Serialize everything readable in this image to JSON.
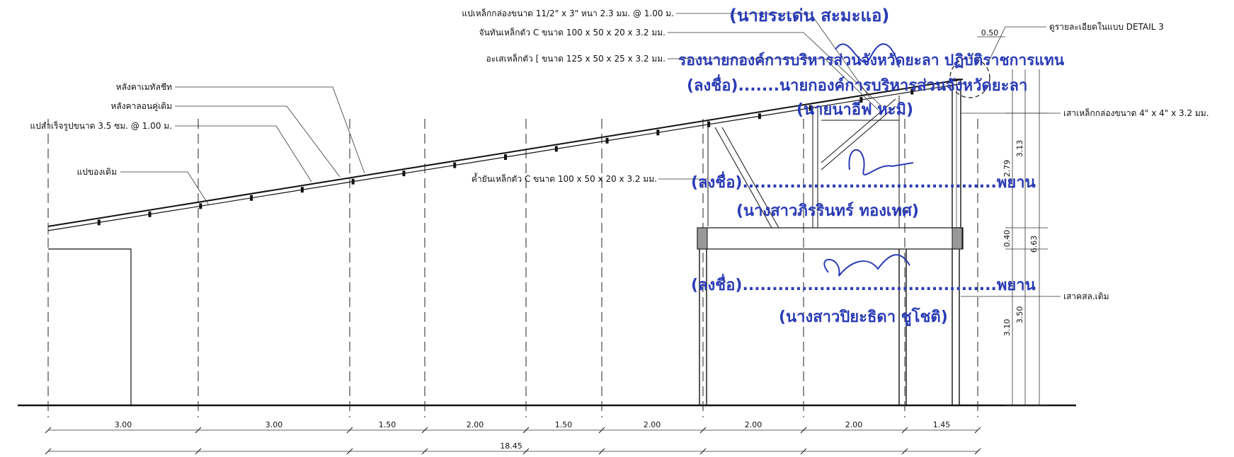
{
  "annotations": {
    "metal_sheet_roof": "หลังคาเมทัลชีท",
    "existing_roof": "หลังคาลอนคู่เดิม",
    "prefab_purlin": "แปสำเร็จรูปขนาด 3.5 ซม. @ 1.00 ม.",
    "existing_purlin": "แปของเดิม",
    "box_purlin": "แปเหล็กกล่องขนาด 11/2\" x 3\" หนา 2.3 มม. @ 1.00 ม.",
    "c_strut": "จันทันเหล็กตัว C ขนาด 100 x 50 x 20 x 3.2 มม.",
    "c_tie": "อะเสเหล็กตัว [ ขนาด 125 x 50 x 25 x 3.2 มม.",
    "c_brace": "ค้ำยันเหล็กตัว C ขนาด 100 x 50 x 20 x 3.2 มม.",
    "detail_ref": "ดูรายละเอียดในแบบ DETAIL 3",
    "box_column": "เสาเหล็กกล่องขนาด 4\" x 4\" x 3.2 มม.",
    "existing_rc_column": "เสาคสล.เดิม"
  },
  "dimensions": {
    "bottom": [
      "3.00",
      "3.00",
      "1.50",
      "2.00",
      "1.50",
      "2.00",
      "2.00",
      "2.00",
      "1.45"
    ],
    "total": "18.45",
    "right": [
      "0.50",
      "2.79",
      "3.13",
      "0.40",
      "3.10",
      "3.50",
      "6.63"
    ]
  },
  "stamp": {
    "line1": "(นายระเด่น  สะมะแอ)",
    "line2": "รองนายกองค์การบริหารส่วนจังหวัดยะลา ปฏิบัติราชการแทน",
    "line3": "(ลงชื่อ).......นายกองค์การบริหารส่วนจังหวัดยะลา",
    "line4": "(นายนาอีฟ  หะมิ)",
    "line5": "(ลงชื่อ)...........................................พยาน",
    "line6": "(นางสาวภิรรินทร์  ทองเทศ)",
    "line7": "(ลงชื่อ)...........................................พยาน",
    "line8": "(นางสาวปิยะธิดา  ชูโชติ)"
  },
  "colors": {
    "ink": "#111111",
    "stamp_blue": "#2a3bb5"
  }
}
